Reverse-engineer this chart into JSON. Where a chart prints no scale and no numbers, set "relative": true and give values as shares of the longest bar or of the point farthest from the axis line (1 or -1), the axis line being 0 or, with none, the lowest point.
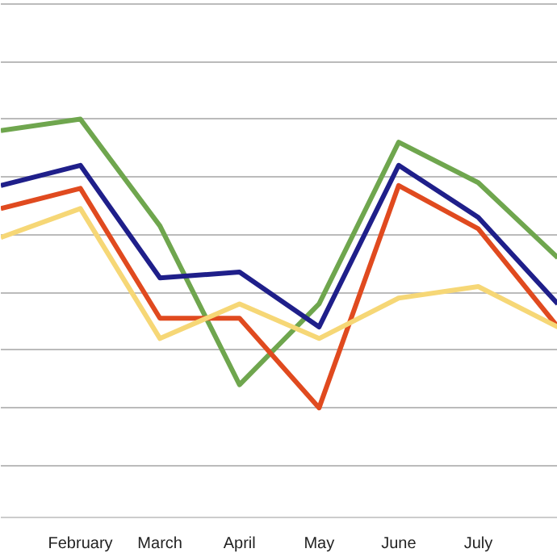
{
  "chart_data": {
    "type": "line",
    "relative": true,
    "grid": "y",
    "marker": "none",
    "line_style": "solid",
    "categories": [
      null,
      "February",
      "March",
      "April",
      "May",
      "June",
      "July",
      null
    ],
    "series": [
      {
        "color": "#6fa64e",
        "values": [
          0.96,
          1.0,
          0.63,
          0.08,
          0.36,
          0.92,
          0.78,
          0.52
        ]
      },
      {
        "color": "#1f1f8a",
        "values": [
          0.77,
          0.84,
          0.45,
          0.47,
          0.28,
          0.84,
          0.66,
          0.36
        ]
      },
      {
        "color": "#e04a1f",
        "values": [
          0.69,
          0.76,
          0.31,
          0.31,
          0.0,
          0.77,
          0.62,
          0.28
        ]
      },
      {
        "color": "#f6d776",
        "values": [
          0.59,
          0.69,
          0.24,
          0.36,
          0.24,
          0.38,
          0.42,
          0.28
        ]
      }
    ]
  }
}
